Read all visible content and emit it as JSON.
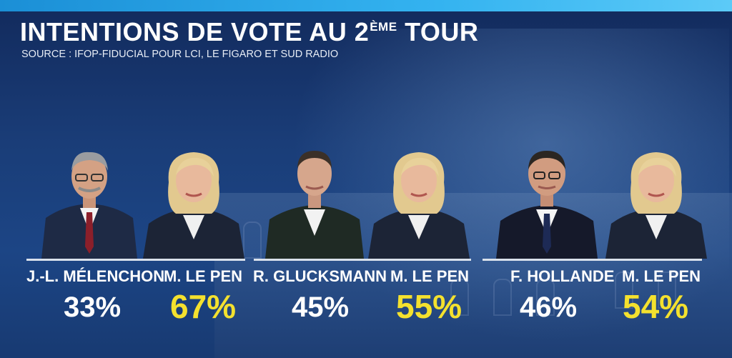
{
  "title_main": "INTENTIONS DE VOTE AU 2",
  "title_sup": "ÈME",
  "title_end": " TOUR",
  "source": "SOURCE : IFOP-FIDUCIAL POUR LCI, LE FIGARO ET SUD RADIO",
  "colors": {
    "winner": "#f4e12e",
    "other": "#ffffff",
    "top_bar": "#34b3f0"
  },
  "chart_data": {
    "type": "bar",
    "title": "INTENTIONS DE VOTE AU 2ÈME TOUR",
    "matchups": [
      {
        "candidates": [
          {
            "name": "J.-L. MÉLENCHON",
            "value": 33,
            "label": "33%"
          },
          {
            "name": "M. LE PEN",
            "value": 67,
            "label": "67%"
          }
        ]
      },
      {
        "candidates": [
          {
            "name": "R. GLUCKSMANN",
            "value": 45,
            "label": "45%"
          },
          {
            "name": "M. LE PEN",
            "value": 55,
            "label": "55%"
          }
        ]
      },
      {
        "candidates": [
          {
            "name": "F. HOLLANDE",
            "value": 46,
            "label": "46%"
          },
          {
            "name": "M. LE PEN",
            "value": 54,
            "label": "54%"
          }
        ]
      }
    ]
  }
}
